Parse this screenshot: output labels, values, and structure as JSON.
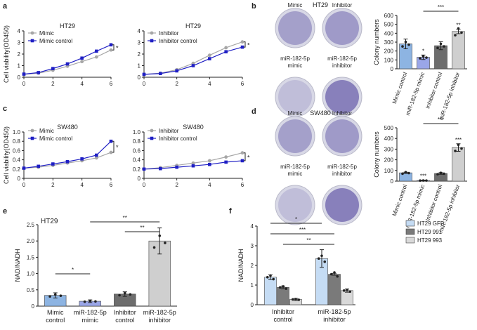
{
  "colors": {
    "mimic": "#a6a6a6",
    "mimic_control": "#1f1fc4",
    "bar_mimic_control": "#8db4e2",
    "bar_mimic": "#9aa6e8",
    "bar_inhibitor_control": "#6d6d6d",
    "bar_inhibitor": "#cfcfcf",
    "gfp": "#c5dcf4",
    "b991": "#7a7a7a",
    "b993": "#d9d9d9",
    "plate_colony": "#5b4fa3",
    "plate_bg": "#d8d8e6"
  },
  "panels": {
    "a": "a",
    "b": "b",
    "c": "c",
    "d": "d",
    "e": "e",
    "f": "f"
  },
  "plates_b": {
    "title": "HT29",
    "labels": [
      "Mimic\ncontrol",
      "Inhibitor\ncontrol",
      "miR-182-5p\nmimic",
      "miR-182-5p\ninhibitor"
    ]
  },
  "plates_d": {
    "title": "SW480",
    "labels": [
      "Mimic\ncontrol",
      "Inhibitor\ncontrol",
      "miR-182-5p\nmimic",
      "miR-182-5p\ninhibitor"
    ]
  },
  "chart_data": [
    {
      "id": "a1",
      "type": "line",
      "title": "HT29",
      "xlabel": "",
      "ylabel": "Cell viability(OD450)",
      "xlim": [
        0,
        6
      ],
      "ylim": [
        0,
        4
      ],
      "xticks": [
        0,
        2,
        4,
        6
      ],
      "yticks": [
        0,
        1,
        2,
        3,
        4
      ],
      "legend": [
        "Mimic",
        "Mimic control"
      ],
      "significance": "*",
      "series": [
        {
          "name": "Mimic",
          "x": [
            0,
            1,
            2,
            3,
            4,
            5,
            6
          ],
          "values": [
            0.25,
            0.35,
            0.6,
            0.95,
            1.35,
            1.75,
            2.35
          ]
        },
        {
          "name": "Mimic control",
          "x": [
            0,
            1,
            2,
            3,
            4,
            5,
            6
          ],
          "values": [
            0.27,
            0.4,
            0.75,
            1.15,
            1.65,
            2.25,
            2.8
          ]
        }
      ]
    },
    {
      "id": "a2",
      "type": "line",
      "title": "HT29",
      "xlabel": "",
      "ylabel": "",
      "xlim": [
        0,
        6
      ],
      "ylim": [
        0,
        4
      ],
      "xticks": [
        0,
        2,
        4,
        6
      ],
      "yticks": [
        0,
        1,
        2,
        3,
        4
      ],
      "legend": [
        "Inhibitor",
        "Inhibitor control"
      ],
      "significance": "*",
      "series": [
        {
          "name": "Inhibitor",
          "x": [
            0,
            1,
            2,
            3,
            4,
            5,
            6
          ],
          "values": [
            0.25,
            0.35,
            0.65,
            1.2,
            1.9,
            2.55,
            3.05
          ]
        },
        {
          "name": "Inhibitor control",
          "x": [
            0,
            1,
            2,
            3,
            4,
            5,
            6
          ],
          "values": [
            0.25,
            0.32,
            0.55,
            1.0,
            1.6,
            2.2,
            2.6
          ]
        }
      ]
    },
    {
      "id": "b",
      "type": "bar",
      "ylabel": "Colony numbers",
      "ylim": [
        0,
        600
      ],
      "yticks": [
        0,
        100,
        200,
        300,
        400,
        500,
        600
      ],
      "categories": [
        "Mimic control",
        "miR-182-5p mimic",
        "Inhibitor control",
        "miR-182-5p inhibitor"
      ],
      "values": [
        280,
        130,
        260,
        420
      ],
      "errors": [
        55,
        25,
        45,
        25
      ],
      "annotations": [
        {
          "over": 1,
          "text": "*"
        },
        {
          "over": 3,
          "text": "**"
        },
        {
          "from": 1,
          "to": 3,
          "text": "***"
        }
      ]
    },
    {
      "id": "c1",
      "type": "line",
      "title": "SW480",
      "xlabel": "",
      "ylabel": "Cell viability(OD450)",
      "xlim": [
        0,
        6
      ],
      "ylim": [
        0,
        1.0
      ],
      "xticks": [
        0,
        2,
        4,
        6
      ],
      "yticks": [
        0,
        0.2,
        0.4,
        0.6,
        0.8,
        1.0
      ],
      "legend": [
        "Mimic",
        "Mimic control"
      ],
      "significance": "*",
      "series": [
        {
          "name": "Mimic",
          "x": [
            0,
            1,
            2,
            3,
            4,
            5,
            6
          ],
          "values": [
            0.22,
            0.24,
            0.28,
            0.33,
            0.38,
            0.44,
            0.56
          ]
        },
        {
          "name": "Mimic control",
          "x": [
            0,
            1,
            2,
            3,
            4,
            5,
            6
          ],
          "values": [
            0.22,
            0.26,
            0.31,
            0.36,
            0.42,
            0.5,
            0.8
          ]
        }
      ]
    },
    {
      "id": "c2",
      "type": "line",
      "title": "SW480",
      "xlabel": "",
      "ylabel": "",
      "xlim": [
        0,
        6
      ],
      "ylim": [
        0,
        1.0
      ],
      "xticks": [
        0,
        2,
        4,
        6
      ],
      "yticks": [
        0,
        0.2,
        0.4,
        0.6,
        0.8,
        1.0
      ],
      "legend": [
        "Inhibitor",
        "Inhibitor control"
      ],
      "significance": "*",
      "series": [
        {
          "name": "Inhibitor",
          "x": [
            0,
            1,
            2,
            3,
            4,
            5,
            6
          ],
          "values": [
            0.2,
            0.23,
            0.28,
            0.33,
            0.38,
            0.46,
            0.55
          ]
        },
        {
          "name": "Inhibitor control",
          "x": [
            0,
            1,
            2,
            3,
            4,
            5,
            6
          ],
          "values": [
            0.2,
            0.21,
            0.24,
            0.27,
            0.3,
            0.35,
            0.38
          ]
        }
      ]
    },
    {
      "id": "d",
      "type": "bar",
      "ylabel": "Colony numbers",
      "ylim": [
        0,
        500
      ],
      "yticks": [
        0,
        100,
        200,
        300,
        400,
        500
      ],
      "categories": [
        "Mimic control",
        "miR-182-5p mimic",
        "Inhibitor control",
        "miR-182-5p inhibitor"
      ],
      "values": [
        78,
        6,
        72,
        315
      ],
      "errors": [
        6,
        3,
        8,
        35
      ],
      "annotations": [
        {
          "over": 1,
          "text": "***"
        },
        {
          "over": 3,
          "text": "***"
        },
        {
          "from": 1,
          "to": 3,
          "text": "***"
        }
      ]
    },
    {
      "id": "e",
      "type": "bar",
      "title": "HT29",
      "ylabel": "NAD/NADH",
      "ylim": [
        0,
        2.5
      ],
      "yticks": [
        0,
        0.5,
        1.0,
        1.5,
        2.0,
        2.5
      ],
      "categories": [
        "Mimic control",
        "miR-182-5p mimic",
        "Inhibitor control",
        "miR-182-5p inhibitor"
      ],
      "values": [
        0.33,
        0.15,
        0.37,
        2.0
      ],
      "errors": [
        0.08,
        0.04,
        0.07,
        0.4
      ],
      "annotations": [
        {
          "from": 0,
          "to": 1,
          "text": "*"
        },
        {
          "from": 2,
          "to": 3,
          "text": "**"
        },
        {
          "from": 1,
          "to": 3,
          "text": "**"
        }
      ]
    },
    {
      "id": "f",
      "type": "bar",
      "ylabel": "NAD/NADH",
      "ylim": [
        0,
        4
      ],
      "yticks": [
        0,
        1,
        2,
        3,
        4
      ],
      "categories": [
        "Inhibitor control",
        "miR-182-5p inhibitor"
      ],
      "series": [
        {
          "name": "HT29 GFP",
          "values": [
            1.4,
            2.35
          ],
          "errors": [
            0.12,
            0.45
          ]
        },
        {
          "name": "HT29 991",
          "values": [
            0.88,
            1.55
          ],
          "errors": [
            0.07,
            0.05
          ]
        },
        {
          "name": "HT29 993",
          "values": [
            0.27,
            0.72
          ],
          "errors": [
            0.05,
            0.08
          ]
        }
      ],
      "legend": [
        "HT29 GFP",
        "HT29 991",
        "HT29 993"
      ],
      "annotations": [
        {
          "text": "*"
        },
        {
          "text": "***"
        },
        {
          "text": "**"
        }
      ]
    }
  ]
}
